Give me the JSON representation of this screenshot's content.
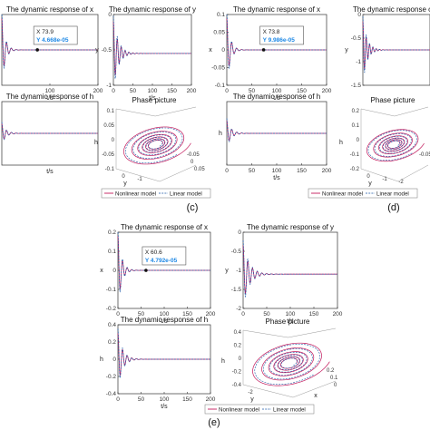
{
  "panels": {
    "c": {
      "label": "(c)"
    },
    "d": {
      "label": "(d)"
    },
    "e": {
      "label": "(e)"
    }
  },
  "legend": {
    "nonlinear": "Nonlinear model",
    "linear": "Linear model"
  },
  "colors": {
    "nonlinear": "#c2185b",
    "linear": "#1e5aa8",
    "axis": "#333333",
    "datatip": "#1e88e5"
  },
  "chart_data": [
    {
      "type": "line",
      "group": "c",
      "title": "The dynamic response of x",
      "xlabel": "t/s",
      "ylabel": "",
      "xlim": [
        0,
        200
      ],
      "ylim": [
        -0.1,
        0.1
      ],
      "xticks": [
        "100",
        "200"
      ],
      "yticks": [],
      "signal": {
        "amplitude": 0.09,
        "decay": 0.15,
        "period": 10,
        "offset": 0
      },
      "datatip": {
        "x_label": "X 73.9",
        "y_label": "Y 4.668e-05",
        "x": 73.9,
        "y": 4.67e-05
      }
    },
    {
      "type": "line",
      "group": "c",
      "title": "The dynamic response of y",
      "xlabel": "t/s",
      "ylabel": "y",
      "xlim": [
        0,
        200
      ],
      "ylim": [
        -1.0,
        0.0
      ],
      "xticks": [
        "0",
        "50",
        "100",
        "150",
        "200"
      ],
      "yticks": [
        "0",
        "-0.5",
        "-1"
      ],
      "signal": {
        "amplitude": 0.45,
        "decay": 0.08,
        "period": 10,
        "offset": -0.55
      }
    },
    {
      "type": "line",
      "group": "c",
      "title": "The dynamic response of h",
      "xlabel": "t/s",
      "ylabel": "",
      "xlim": [
        0,
        200
      ],
      "ylim": [
        -0.1,
        0.1
      ],
      "xticks": [],
      "yticks": [],
      "signal": {
        "amplitude": 0.03,
        "decay": 0.12,
        "period": 10,
        "offset": 0
      }
    },
    {
      "type": "line3d",
      "group": "c",
      "title": "Phase picture",
      "xlabel": "",
      "ylabel": "y",
      "zlabel": "h",
      "zticks": [
        "0.1",
        "0.05",
        "0",
        "-0.05",
        "-0.1"
      ],
      "xticks": [
        "-0.05",
        "0",
        "0.05"
      ],
      "yticks": [
        "0",
        "-1"
      ]
    },
    {
      "type": "line",
      "group": "d",
      "title": "The dynamic response of x",
      "xlabel": "t/s",
      "ylabel": "x",
      "xlim": [
        0,
        200
      ],
      "ylim": [
        -0.1,
        0.1
      ],
      "xticks": [
        "0",
        "50",
        "100",
        "150",
        "200"
      ],
      "yticks": [
        "0.1",
        "0.05",
        "0",
        "-0.05",
        "-0.1"
      ],
      "signal": {
        "amplitude": 0.09,
        "decay": 0.15,
        "period": 10,
        "offset": 0
      },
      "datatip": {
        "x_label": "X 73.8",
        "y_label": "Y 9.986e-05",
        "x": 73.8,
        "y": 9.99e-05
      }
    },
    {
      "type": "line",
      "group": "d",
      "title": "The dynamic response of y",
      "xlabel": "",
      "ylabel": "y",
      "xlim": [
        0,
        200
      ],
      "ylim": [
        -1.5,
        0.0
      ],
      "xticks": [],
      "yticks": [
        "0",
        "-0.5",
        "-1",
        "-1.5"
      ],
      "signal": {
        "amplitude": 0.6,
        "decay": 0.08,
        "period": 10,
        "offset": -0.75
      }
    },
    {
      "type": "line",
      "group": "d",
      "title": "The dynamic response of h",
      "xlabel": "t/s",
      "ylabel": "h",
      "xlim": [
        0,
        200
      ],
      "ylim": [
        -0.1,
        0.1
      ],
      "xticks": [
        "0",
        "50",
        "100",
        "150",
        "200"
      ],
      "yticks": [],
      "signal": {
        "amplitude": 0.04,
        "decay": 0.12,
        "period": 10,
        "offset": 0
      }
    },
    {
      "type": "line3d",
      "group": "d",
      "title": "Phase picture",
      "xlabel": "",
      "ylabel": "y",
      "zlabel": "h",
      "zticks": [
        "0.2",
        "0.1",
        "0",
        "-0.1",
        "-0.2"
      ],
      "xticks": [
        "-0.05"
      ],
      "yticks": [
        "0",
        "-1",
        "-2"
      ]
    },
    {
      "type": "line",
      "group": "e",
      "title": "The dynamic response of x",
      "xlabel": "t/s",
      "ylabel": "x",
      "xlim": [
        0,
        200
      ],
      "ylim": [
        -0.2,
        0.2
      ],
      "xticks": [
        "0",
        "50",
        "100",
        "150",
        "200"
      ],
      "yticks": [
        "0.2",
        "0.1",
        "0",
        "-0.1",
        "-0.2"
      ],
      "signal": {
        "amplitude": 0.18,
        "decay": 0.13,
        "period": 10,
        "offset": 0
      },
      "datatip": {
        "x_label": "X 60.6",
        "y_label": "Y 4.792e-05",
        "x": 60.6,
        "y": 4.79e-05
      }
    },
    {
      "type": "line",
      "group": "e",
      "title": "The dynamic response of y",
      "xlabel": "t/s",
      "ylabel": "y",
      "xlim": [
        0,
        200
      ],
      "ylim": [
        -2,
        0
      ],
      "xticks": [
        "0",
        "50",
        "100",
        "150",
        "200"
      ],
      "yticks": [
        "0",
        "-0.5",
        "-1",
        "-1.5",
        "-2"
      ],
      "signal": {
        "amplitude": 0.75,
        "decay": 0.08,
        "period": 10,
        "offset": -1.1
      }
    },
    {
      "type": "line",
      "group": "e",
      "title": "The dynamic response of h",
      "xlabel": "t/s",
      "ylabel": "h",
      "xlim": [
        0,
        200
      ],
      "ylim": [
        -0.4,
        0.4
      ],
      "xticks": [
        "0",
        "50",
        "100",
        "150",
        "200"
      ],
      "yticks": [
        "0.4",
        "0.2",
        "0",
        "-0.2",
        "-0.4"
      ],
      "signal": {
        "amplitude": 0.3,
        "decay": 0.1,
        "period": 10,
        "offset": 0
      }
    },
    {
      "type": "line3d",
      "group": "e",
      "title": "Phase picture",
      "xlabel": "x",
      "ylabel": "y",
      "zlabel": "h",
      "zticks": [
        "0.4",
        "0.2",
        "0",
        "-0.2",
        "-0.4"
      ],
      "xticks": [
        "0.2",
        "0.1",
        "0"
      ],
      "yticks": [
        "-2"
      ]
    }
  ]
}
